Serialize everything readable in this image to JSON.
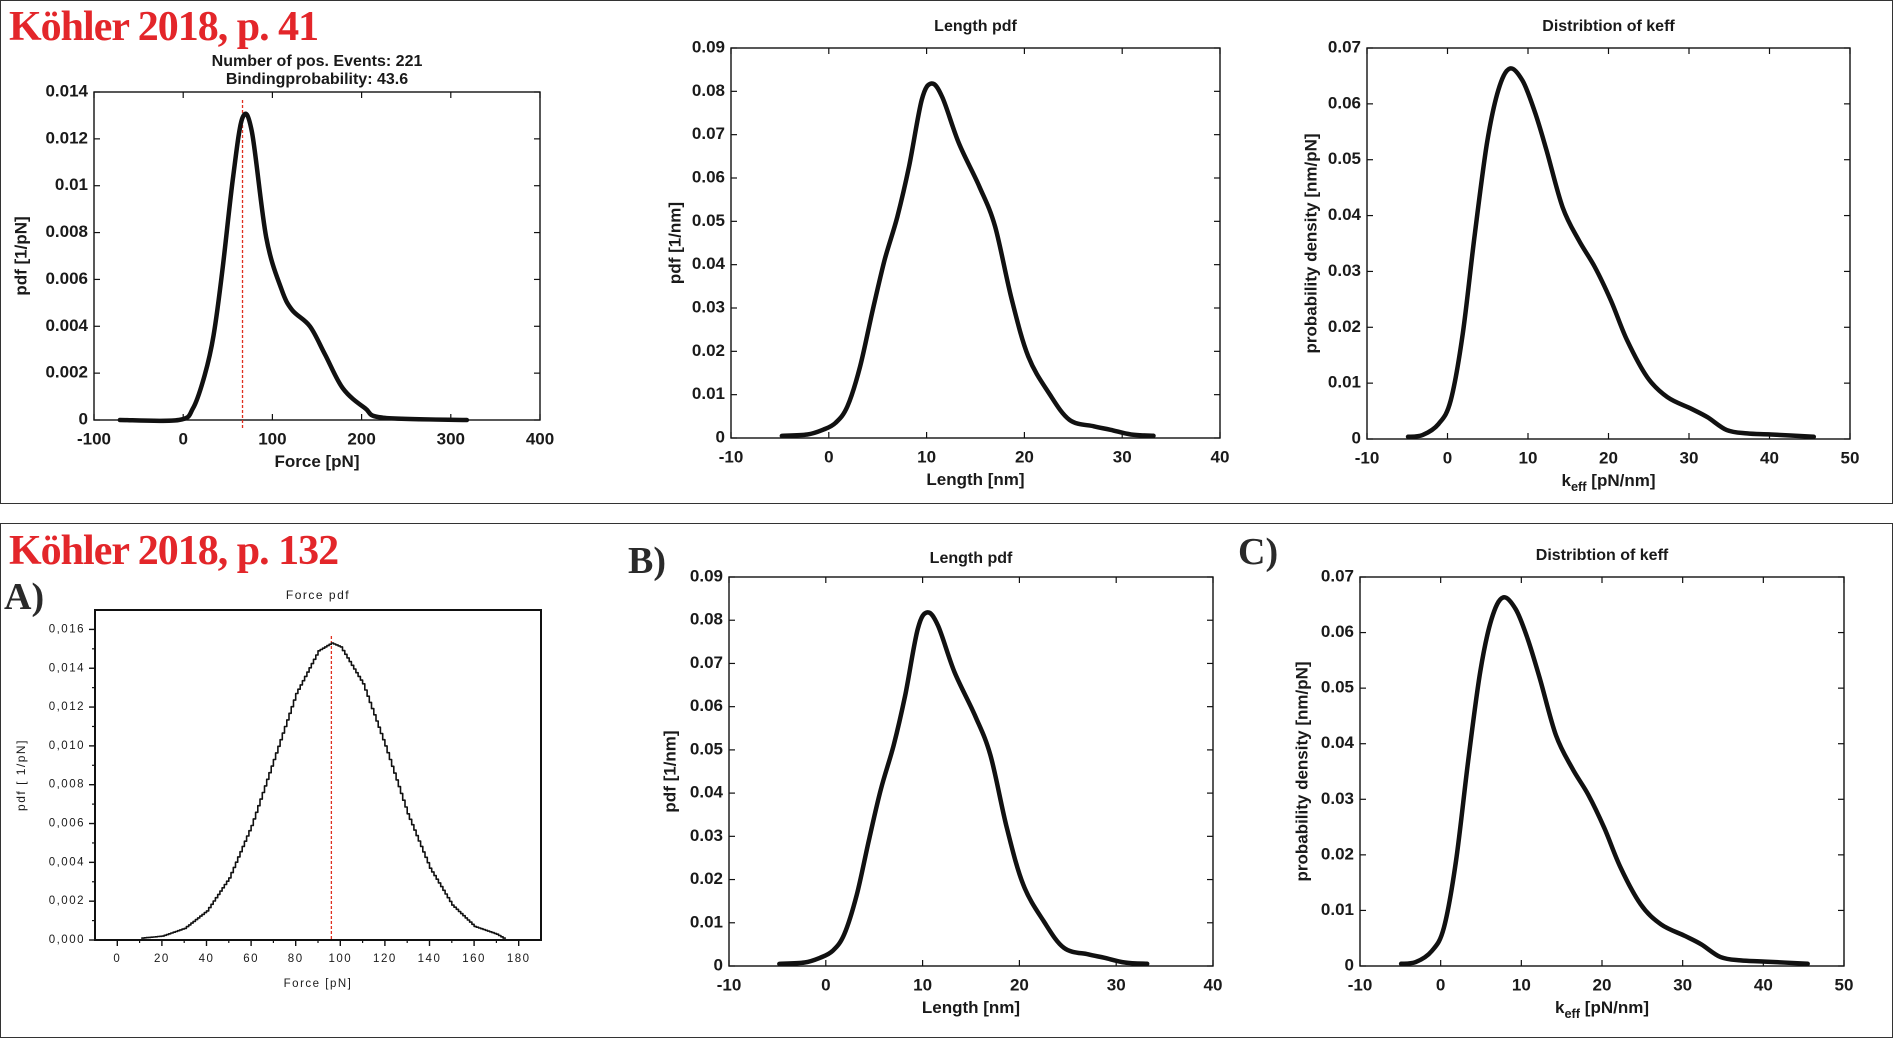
{
  "sources": {
    "top": "Köhler 2018, p. 41",
    "bottom": "Köhler 2018, p. 132"
  },
  "colors": {
    "source_text": "#e3262a",
    "curve": "#111111",
    "marker": "#e03020"
  },
  "chart_data": [
    {
      "type": "line",
      "title": [
        "Number of pos. Events: 221",
        "Bindingprobability: 43.6"
      ],
      "xlabel": "Force [pN]",
      "xlabel_sub": "",
      "xlabel_suffix": "",
      "ylabel": "pdf [1/pN]",
      "xlim": [
        -100,
        400
      ],
      "ylim": [
        0,
        0.014
      ],
      "xticks": [
        -100,
        0,
        100,
        200,
        300,
        400
      ],
      "xtick_labels": [
        "-100",
        "0",
        "100",
        "200",
        "300",
        "400"
      ],
      "yticks": [
        0,
        0.002,
        0.004,
        0.006,
        0.008,
        0.01,
        0.012,
        0.014
      ],
      "ytick_labels": [
        "0",
        "0.002",
        "0.004",
        "0.006",
        "0.008",
        "0.01",
        "0.012",
        "0.014"
      ],
      "marker_line_x": 66.5,
      "x": [
        -71,
        -5,
        11,
        24,
        34,
        44,
        56,
        66.5,
        77,
        93,
        110,
        122,
        142,
        159,
        179,
        204,
        224,
        318
      ],
      "y": [
        0,
        0,
        0.0005,
        0.0019,
        0.0036,
        0.0064,
        0.0104,
        0.0129,
        0.0123,
        0.0078,
        0.0056,
        0.0047,
        0.004,
        0.0028,
        0.00135,
        0.0005,
        0.0001,
        0
      ]
    },
    {
      "type": "line",
      "title": [
        "Length pdf"
      ],
      "xlabel": "Length [nm]",
      "xlabel_sub": "",
      "xlabel_suffix": "",
      "ylabel": "pdf [1/nm]",
      "xlim": [
        -10,
        40
      ],
      "ylim": [
        0,
        0.09
      ],
      "xticks": [
        -10,
        0,
        10,
        20,
        30,
        40
      ],
      "xtick_labels": [
        "-10",
        "0",
        "10",
        "20",
        "30",
        "40"
      ],
      "yticks": [
        0,
        0.01,
        0.02,
        0.03,
        0.04,
        0.05,
        0.06,
        0.07,
        0.08,
        0.09
      ],
      "ytick_labels": [
        "0",
        "0.01",
        "0.02",
        "0.03",
        "0.04",
        "0.05",
        "0.06",
        "0.07",
        "0.08",
        "0.09"
      ],
      "x": [
        -4.8,
        -2.2,
        -0.6,
        0.7,
        1.9,
        3.2,
        4.5,
        5.7,
        7.0,
        8.2,
        9.5,
        10.5,
        11.6,
        13.3,
        15.4,
        17.0,
        18.7,
        20.4,
        22.5,
        24.6,
        27.1,
        28.8,
        30.9,
        33.2
      ],
      "y": [
        0.0005,
        0.0008,
        0.0019,
        0.0035,
        0.0073,
        0.0165,
        0.0296,
        0.041,
        0.051,
        0.0626,
        0.078,
        0.0818,
        0.0787,
        0.068,
        0.058,
        0.0488,
        0.032,
        0.0188,
        0.0104,
        0.0042,
        0.0027,
        0.0019,
        0.0008,
        0.0005
      ]
    },
    {
      "type": "line",
      "title": [
        "Distribtion of keff"
      ],
      "xlabel": "k",
      "xlabel_sub": "eff",
      "xlabel_suffix": " [pN/nm]",
      "ylabel": "probability density [nm/pN]",
      "xlim": [
        -10,
        50
      ],
      "ylim": [
        0,
        0.07
      ],
      "xticks": [
        -10,
        0,
        10,
        20,
        30,
        40,
        50
      ],
      "xtick_labels": [
        "-10",
        "0",
        "10",
        "20",
        "30",
        "40",
        "50"
      ],
      "yticks": [
        0,
        0.01,
        0.02,
        0.03,
        0.04,
        0.05,
        0.06,
        0.07
      ],
      "ytick_labels": [
        "0",
        "0.01",
        "0.02",
        "0.03",
        "0.04",
        "0.05",
        "0.06",
        "0.07"
      ],
      "x": [
        -4.9,
        -3.1,
        -1.1,
        0.4,
        1.9,
        3.4,
        4.9,
        6.3,
        7.7,
        9.3,
        10.8,
        12.3,
        14.3,
        16.3,
        18.3,
        20.3,
        22.3,
        24.8,
        27.3,
        30.3,
        32.3,
        34.7,
        37.2,
        40.2,
        45.5
      ],
      "y": [
        0.0004,
        0.0007,
        0.0027,
        0.0069,
        0.0189,
        0.0368,
        0.0529,
        0.0624,
        0.0663,
        0.0642,
        0.0588,
        0.0517,
        0.0415,
        0.0356,
        0.0308,
        0.0248,
        0.0177,
        0.0111,
        0.0075,
        0.0054,
        0.0039,
        0.0016,
        0.001,
        0.0008,
        0.0004
      ]
    },
    {
      "type": "line",
      "panel_label": "A)",
      "title": [
        "Force pdf"
      ],
      "xlabel": "Force [pN]",
      "xlabel_sub": "",
      "xlabel_suffix": "",
      "ylabel": "pdf [ 1/pN]",
      "xlim": [
        -10,
        190
      ],
      "ylim": [
        0,
        0.017
      ],
      "xticks": [
        0,
        20,
        40,
        60,
        80,
        100,
        120,
        140,
        160,
        180
      ],
      "xtick_labels": [
        "0",
        "20",
        "40",
        "60",
        "80",
        "100",
        "120",
        "140",
        "160",
        "180"
      ],
      "yticks": [
        0,
        0.002,
        0.004,
        0.006,
        0.008,
        0.01,
        0.012,
        0.014,
        0.016
      ],
      "ytick_labels": [
        "0,000",
        "0,002",
        "0,004",
        "0,006",
        "0,008",
        "0,010",
        "0,012",
        "0,014",
        "0,016"
      ],
      "marker_line_x": 96,
      "x": [
        11,
        20,
        30,
        40,
        50,
        60,
        70,
        80,
        90,
        96,
        100,
        110,
        120,
        130,
        140,
        150,
        160,
        170,
        173
      ],
      "y": [
        0.0001,
        0.0002,
        0.0006,
        0.0015,
        0.0032,
        0.0059,
        0.0093,
        0.0127,
        0.0149,
        0.0153,
        0.0151,
        0.0132,
        0.01,
        0.0065,
        0.0037,
        0.0018,
        0.0007,
        0.0003,
        0.0001
      ]
    },
    {
      "type": "line",
      "panel_label": "B)",
      "title": [
        "Length pdf"
      ],
      "xlabel": "Length [nm]",
      "xlabel_sub": "",
      "xlabel_suffix": "",
      "ylabel": "pdf [1/nm]",
      "xlim": [
        -10,
        40
      ],
      "ylim": [
        0,
        0.09
      ],
      "xticks": [
        -10,
        0,
        10,
        20,
        30,
        40
      ],
      "xtick_labels": [
        "-10",
        "0",
        "10",
        "20",
        "30",
        "40"
      ],
      "yticks": [
        0,
        0.01,
        0.02,
        0.03,
        0.04,
        0.05,
        0.06,
        0.07,
        0.08,
        0.09
      ],
      "ytick_labels": [
        "0",
        "0.01",
        "0.02",
        "0.03",
        "0.04",
        "0.05",
        "0.06",
        "0.07",
        "0.08",
        "0.09"
      ],
      "x": [
        -4.8,
        -2.2,
        -0.6,
        0.7,
        1.9,
        3.2,
        4.5,
        5.7,
        7.0,
        8.2,
        9.5,
        10.5,
        11.6,
        13.3,
        15.4,
        17.0,
        18.7,
        20.4,
        22.5,
        24.6,
        27.1,
        28.8,
        30.9,
        33.2
      ],
      "y": [
        0.0005,
        0.0008,
        0.0019,
        0.0035,
        0.0073,
        0.0165,
        0.0296,
        0.041,
        0.051,
        0.0626,
        0.078,
        0.0818,
        0.0787,
        0.068,
        0.058,
        0.0488,
        0.032,
        0.0188,
        0.0104,
        0.0042,
        0.0027,
        0.0019,
        0.0008,
        0.0005
      ]
    },
    {
      "type": "line",
      "panel_label": "C)",
      "title": [
        "Distribtion of keff"
      ],
      "xlabel": "k",
      "xlabel_sub": "eff",
      "xlabel_suffix": " [pN/nm]",
      "ylabel": "probability density [nm/pN]",
      "xlim": [
        -10,
        50
      ],
      "ylim": [
        0,
        0.07
      ],
      "xticks": [
        -10,
        0,
        10,
        20,
        30,
        40,
        50
      ],
      "xtick_labels": [
        "-10",
        "0",
        "10",
        "20",
        "30",
        "40",
        "50"
      ],
      "yticks": [
        0,
        0.01,
        0.02,
        0.03,
        0.04,
        0.05,
        0.06,
        0.07
      ],
      "ytick_labels": [
        "0",
        "0.01",
        "0.02",
        "0.03",
        "0.04",
        "0.05",
        "0.06",
        "0.07"
      ],
      "x": [
        -4.9,
        -3.1,
        -1.1,
        0.4,
        1.9,
        3.4,
        4.9,
        6.3,
        7.7,
        9.3,
        10.8,
        12.3,
        14.3,
        16.3,
        18.3,
        20.3,
        22.3,
        24.8,
        27.3,
        30.3,
        32.3,
        34.7,
        37.2,
        40.2,
        45.5
      ],
      "y": [
        0.0004,
        0.0007,
        0.0027,
        0.0069,
        0.0189,
        0.0368,
        0.0529,
        0.0624,
        0.0663,
        0.0642,
        0.0588,
        0.0517,
        0.0415,
        0.0356,
        0.0308,
        0.0248,
        0.0177,
        0.0111,
        0.0075,
        0.0054,
        0.0039,
        0.0016,
        0.001,
        0.0008,
        0.0004
      ]
    }
  ]
}
